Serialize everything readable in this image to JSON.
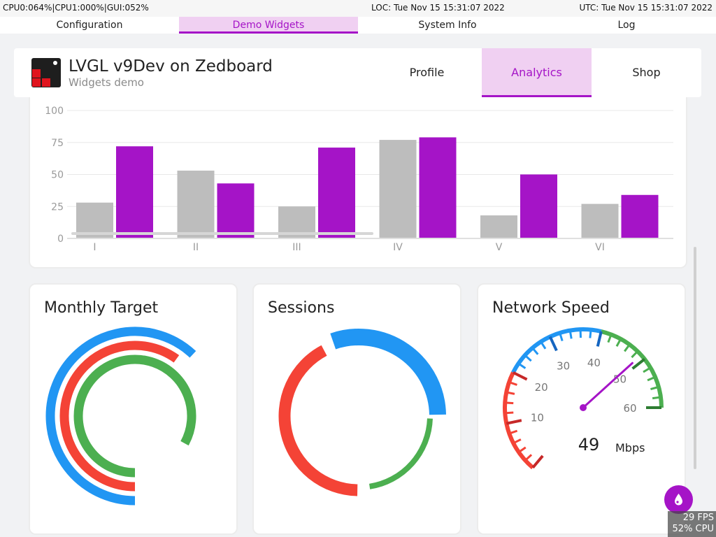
{
  "status_bar": {
    "cpu": "CPU0:064%|CPU1:000%|GUI:052%",
    "local_time": "LOC: Tue Nov 15 15:31:07 2022",
    "utc_time": "UTC: Tue Nov 15 15:31:07 2022"
  },
  "top_tabs": [
    {
      "label": "Configuration",
      "active": false
    },
    {
      "label": "Demo Widgets",
      "active": true
    },
    {
      "label": "System Info",
      "active": false
    },
    {
      "label": "Log",
      "active": false
    }
  ],
  "header": {
    "title": "LVGL v9Dev on Zedboard",
    "subtitle": "Widgets demo",
    "tabs": [
      {
        "label": "Profile",
        "active": false
      },
      {
        "label": "Analytics",
        "active": true
      },
      {
        "label": "Shop",
        "active": false
      }
    ]
  },
  "chart_data": [
    {
      "type": "bar",
      "categories": [
        "I",
        "II",
        "III",
        "IV",
        "V",
        "VI"
      ],
      "series": [
        {
          "values": [
            28,
            53,
            25,
            77,
            18,
            27
          ],
          "color": "#bdbdbd"
        },
        {
          "values": [
            72,
            43,
            71,
            79,
            50,
            34
          ],
          "color": "#a514c7"
        }
      ],
      "ylim": [
        0,
        100
      ],
      "yticks": [
        "0",
        "25",
        "50",
        "75",
        "100"
      ],
      "grid": true,
      "xlabel": "",
      "ylabel": ""
    },
    {
      "type": "arc",
      "title": "Monthly Target",
      "series": [
        {
          "value": 0.62,
          "color": "#2196f3"
        },
        {
          "value": 0.6,
          "color": "#f44336"
        },
        {
          "value": 0.83,
          "color": "#4caf50"
        }
      ]
    },
    {
      "type": "pie",
      "title": "Sessions",
      "series": [
        {
          "value": 0.3,
          "color": "#2196f3"
        },
        {
          "value": 0.22,
          "color": "#4caf50"
        },
        {
          "value": 0.42,
          "color": "#f44336"
        }
      ]
    },
    {
      "type": "gauge",
      "title": "Network Speed",
      "value": 49,
      "value_text": "49",
      "unit": "Mbps",
      "range": [
        0,
        60
      ],
      "tick_labels": [
        "10",
        "20",
        "30",
        "40",
        "50",
        "60"
      ],
      "zones": [
        {
          "from": 0,
          "to": 20,
          "color": "#f44336"
        },
        {
          "from": 20,
          "to": 40,
          "color": "#2196f3"
        },
        {
          "from": 40,
          "to": 60,
          "color": "#4caf50"
        }
      ],
      "needle_color": "#a514c7"
    }
  ],
  "fab": {
    "icon": "drop-icon",
    "color": "#a514c7"
  },
  "perf": {
    "fps": "29 FPS",
    "cpu": "52% CPU"
  },
  "colors": {
    "accent": "#a514c7",
    "accent_light": "#f0d0f2"
  }
}
